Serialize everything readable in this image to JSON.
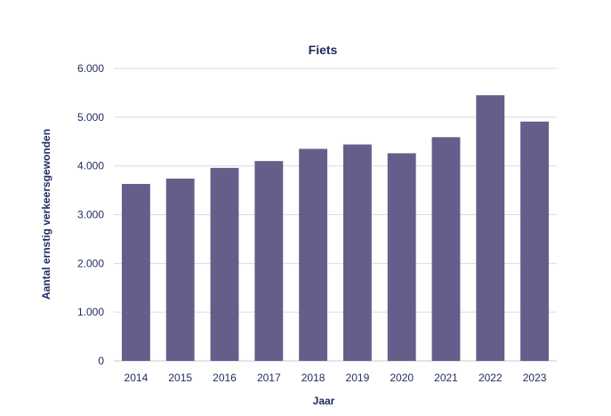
{
  "chart_data": {
    "type": "bar",
    "title": "Fiets",
    "xlabel": "Jaar",
    "ylabel": "Aantal ernstig verkeersgewonden",
    "categories": [
      "2014",
      "2015",
      "2016",
      "2017",
      "2018",
      "2019",
      "2020",
      "2021",
      "2022",
      "2023"
    ],
    "values": [
      3630,
      3740,
      3960,
      4100,
      4350,
      4440,
      4260,
      4590,
      5450,
      4910
    ],
    "ylim": [
      0,
      6000
    ],
    "yticks": [
      0,
      1000,
      2000,
      3000,
      4000,
      5000,
      6000
    ],
    "ytick_labels": [
      "0",
      "1.000",
      "2.000",
      "3.000",
      "4.000",
      "5.000",
      "6.000"
    ],
    "grid": true,
    "legend": "none",
    "colors": {
      "bar": "#655e8a",
      "text": "#1f2a5c",
      "grid": "#d9dbe6"
    }
  }
}
